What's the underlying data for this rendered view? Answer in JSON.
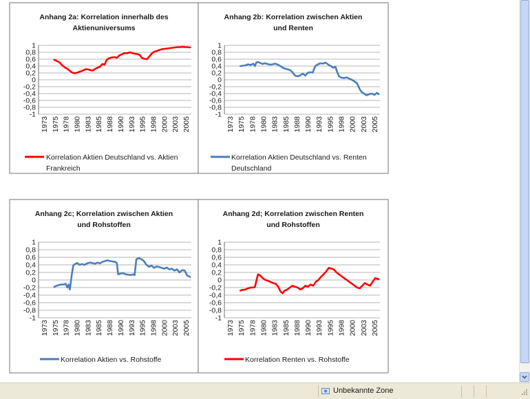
{
  "chart_data": [
    {
      "id": "2a",
      "type": "line",
      "title_lines": [
        "Anhang 2a: Korrelation innerhalb des",
        "Aktienuniversums"
      ],
      "legend_lines": [
        "Korrelation Aktien Deutschland vs. Aktien",
        "Frankreich"
      ],
      "color": "#ff0000",
      "ylim": [
        -1,
        1
      ],
      "yticks": [
        "1",
        "0,8",
        "0,6",
        "0,4",
        "0,2",
        "0",
        "-0,2",
        "-0,4",
        "-0,6",
        "-0,8",
        "-1"
      ],
      "xticks": [
        "1973",
        "1975",
        "1978",
        "1980",
        "1983",
        "1985",
        "1988",
        "1990",
        "1993",
        "1995",
        "1998",
        "2000",
        "2003",
        "2005"
      ],
      "xlim": [
        1972.2,
        2008.3
      ],
      "series": [
        {
          "name": "Korrelation Aktien Deutschland vs. Aktien Frankreich",
          "x": [
            1975.9,
            1976.5,
            1977.2,
            1977.8,
            1978.4,
            1979.0,
            1979.5,
            1980.0,
            1980.6,
            1981.2,
            1981.8,
            1982.3,
            1982.8,
            1983.4,
            1984.0,
            1984.5,
            1985.0,
            1985.5,
            1986.1,
            1986.7,
            1987.3,
            1987.8,
            1988.3,
            1988.9,
            1989.5,
            1990.1,
            1990.7,
            1991.3,
            1991.9,
            1992.5,
            1993.1,
            1993.7,
            1994.3,
            1994.9,
            1995.5,
            1996.1,
            1996.6,
            1997.2,
            1997.8,
            1998.4,
            1999.0,
            1999.6,
            2000.2,
            2000.8,
            2001.4,
            2002.0,
            2002.6,
            2003.2,
            2003.8,
            2004.4,
            2005.0,
            2005.6,
            2006.2,
            2006.8,
            2007.4,
            2008.0
          ],
          "y": [
            0.58,
            0.55,
            0.5,
            0.42,
            0.36,
            0.32,
            0.27,
            0.22,
            0.19,
            0.2,
            0.23,
            0.25,
            0.28,
            0.31,
            0.3,
            0.28,
            0.27,
            0.31,
            0.35,
            0.38,
            0.46,
            0.44,
            0.58,
            0.63,
            0.65,
            0.66,
            0.64,
            0.71,
            0.74,
            0.78,
            0.77,
            0.8,
            0.78,
            0.76,
            0.75,
            0.72,
            0.64,
            0.61,
            0.6,
            0.68,
            0.77,
            0.82,
            0.84,
            0.87,
            0.89,
            0.9,
            0.91,
            0.92,
            0.93,
            0.94,
            0.95,
            0.95,
            0.96,
            0.95,
            0.95,
            0.94
          ]
        }
      ]
    },
    {
      "id": "2b",
      "type": "line",
      "title_lines": [
        "Anhang 2b: Korrelation zwischen Aktien",
        "und Renten"
      ],
      "legend_lines": [
        "Korrelation Aktien Deutschland vs. Renten",
        "Deutschland"
      ],
      "color": "#4a7ebb",
      "ylim": [
        -1,
        1
      ],
      "yticks": [
        "1",
        "0,8",
        "0,6",
        "0,4",
        "0,2",
        "0",
        "-0,2",
        "-0,4",
        "-0,6",
        "-0,8",
        "-1"
      ],
      "xticks": [
        "1973",
        "1975",
        "1978",
        "1980",
        "1983",
        "1985",
        "1988",
        "1990",
        "1993",
        "1995",
        "1998",
        "2000",
        "2003",
        "2005"
      ],
      "xlim": [
        1972.2,
        2008.3
      ],
      "series": [
        {
          "name": "Korrelation Aktien Deutschland vs. Renten Deutschland",
          "x": [
            1975.9,
            1976.5,
            1977.1,
            1977.7,
            1978.3,
            1978.9,
            1979.3,
            1979.6,
            1980.0,
            1980.5,
            1981.0,
            1981.6,
            1982.2,
            1982.8,
            1983.4,
            1984.0,
            1984.6,
            1985.2,
            1985.8,
            1986.4,
            1987.0,
            1987.5,
            1988.0,
            1988.6,
            1989.2,
            1989.8,
            1990.4,
            1991.0,
            1991.5,
            1992.1,
            1992.7,
            1993.3,
            1993.9,
            1994.5,
            1995.1,
            1995.7,
            1996.3,
            1996.9,
            1997.5,
            1998.0,
            1998.3,
            1998.8,
            1999.4,
            2000.0,
            2000.6,
            2001.2,
            2001.8,
            2002.4,
            2003.0,
            2003.5,
            2004.0,
            2004.6,
            2005.2,
            2005.8,
            2006.4,
            2007.0,
            2007.6,
            2008.0
          ],
          "y": [
            0.4,
            0.41,
            0.42,
            0.45,
            0.43,
            0.47,
            0.4,
            0.5,
            0.52,
            0.49,
            0.46,
            0.48,
            0.46,
            0.44,
            0.45,
            0.47,
            0.44,
            0.4,
            0.35,
            0.32,
            0.3,
            0.28,
            0.22,
            0.12,
            0.1,
            0.13,
            0.18,
            0.12,
            0.2,
            0.22,
            0.21,
            0.4,
            0.45,
            0.48,
            0.47,
            0.5,
            0.44,
            0.4,
            0.35,
            0.38,
            0.25,
            0.1,
            0.06,
            0.05,
            0.07,
            0.03,
            0.0,
            -0.05,
            -0.1,
            -0.25,
            -0.35,
            -0.4,
            -0.45,
            -0.42,
            -0.4,
            -0.44,
            -0.38,
            -0.42
          ]
        }
      ]
    },
    {
      "id": "2c",
      "type": "line",
      "title_lines": [
        "Anhang 2c; Korrelation zwischen Aktien",
        "und Rohstoffen"
      ],
      "legend_lines": [
        "Korrelation Aktien vs. Rohstoffe"
      ],
      "color": "#4a7ebb",
      "ylim": [
        -1,
        1
      ],
      "yticks": [
        "1",
        "0,8",
        "0,6",
        "0,4",
        "0,2",
        "0",
        "-0,2",
        "-0,4",
        "-0,6",
        "-0,8",
        "-1"
      ],
      "xticks": [
        "1973",
        "1975",
        "1978",
        "1980",
        "1983",
        "1985",
        "1988",
        "1990",
        "1993",
        "1995",
        "1998",
        "2000",
        "2003",
        "2005"
      ],
      "xlim": [
        1972.2,
        2008.3
      ],
      "series": [
        {
          "name": "Korrelation Aktien vs. Rohstoffe",
          "x": [
            1975.9,
            1976.5,
            1977.1,
            1977.7,
            1978.2,
            1978.6,
            1979.0,
            1979.3,
            1979.6,
            1980.0,
            1980.4,
            1980.8,
            1981.3,
            1981.9,
            1982.5,
            1983.1,
            1983.7,
            1984.3,
            1984.9,
            1985.5,
            1986.1,
            1986.7,
            1987.3,
            1987.9,
            1988.5,
            1989.1,
            1989.7,
            1990.3,
            1990.7,
            1991.0,
            1991.6,
            1992.2,
            1992.8,
            1993.4,
            1994.0,
            1994.5,
            1994.9,
            1995.3,
            1995.9,
            1996.5,
            1997.1,
            1997.7,
            1998.3,
            1998.9,
            1999.5,
            2000.1,
            2000.7,
            2001.3,
            2001.9,
            2002.5,
            2003.1,
            2003.7,
            2004.3,
            2004.9,
            2005.5,
            2006.1,
            2006.7,
            2007.3,
            2008.0
          ],
          "y": [
            -0.18,
            -0.15,
            -0.13,
            -0.12,
            -0.12,
            -0.1,
            -0.2,
            -0.12,
            -0.25,
            0.1,
            0.38,
            0.42,
            0.45,
            0.4,
            0.42,
            0.4,
            0.44,
            0.46,
            0.45,
            0.43,
            0.46,
            0.44,
            0.48,
            0.5,
            0.52,
            0.5,
            0.49,
            0.48,
            0.45,
            0.15,
            0.17,
            0.18,
            0.15,
            0.14,
            0.13,
            0.15,
            0.13,
            0.55,
            0.58,
            0.55,
            0.5,
            0.4,
            0.35,
            0.38,
            0.32,
            0.36,
            0.34,
            0.32,
            0.3,
            0.33,
            0.28,
            0.3,
            0.25,
            0.28,
            0.2,
            0.26,
            0.25,
            0.12,
            0.08
          ]
        }
      ]
    },
    {
      "id": "2d",
      "type": "line",
      "title_lines": [
        "Anhang 2d; Korrelation zwischen Renten",
        "und Rohstoffen"
      ],
      "legend_lines": [
        "Korrelation Renten vs. Rohstoffe"
      ],
      "color": "#ff0000",
      "ylim": [
        -1,
        1
      ],
      "yticks": [
        "1",
        "0,8",
        "0,6",
        "0,4",
        "0,2",
        "0",
        "-0,2",
        "-0,4",
        "-0,6",
        "-0,8",
        "-1"
      ],
      "xticks": [
        "1973",
        "1975",
        "1978",
        "1980",
        "1983",
        "1985",
        "1988",
        "1990",
        "1993",
        "1995",
        "1998",
        "2000",
        "2003",
        "2005"
      ],
      "xlim": [
        1972.2,
        2008.3
      ],
      "series": [
        {
          "name": "Korrelation Renten vs. Rohstoffe",
          "x": [
            1975.9,
            1976.5,
            1977.1,
            1977.7,
            1978.3,
            1978.9,
            1979.3,
            1979.7,
            1980.0,
            1980.5,
            1981.1,
            1981.7,
            1982.3,
            1982.9,
            1983.5,
            1984.1,
            1984.7,
            1985.2,
            1985.7,
            1986.2,
            1986.8,
            1987.4,
            1988.0,
            1988.6,
            1989.2,
            1989.8,
            1990.4,
            1991.0,
            1991.6,
            1992.2,
            1992.8,
            1993.4,
            1994.0,
            1994.6,
            1995.2,
            1995.8,
            1996.4,
            1997.0,
            1997.6,
            1998.2,
            1998.8,
            1999.4,
            2000.0,
            2000.6,
            2001.2,
            2001.8,
            2002.4,
            2003.0,
            2003.6,
            2004.2,
            2004.8,
            2005.4,
            2006.0,
            2006.6,
            2007.2,
            2008.0
          ],
          "y": [
            -0.28,
            -0.26,
            -0.25,
            -0.22,
            -0.2,
            -0.2,
            -0.18,
            0.02,
            0.15,
            0.12,
            0.05,
            0.0,
            -0.02,
            -0.05,
            -0.08,
            -0.1,
            -0.18,
            -0.3,
            -0.35,
            -0.28,
            -0.25,
            -0.2,
            -0.15,
            -0.18,
            -0.2,
            -0.25,
            -0.22,
            -0.15,
            -0.18,
            -0.12,
            -0.15,
            -0.05,
            0.0,
            0.08,
            0.15,
            0.22,
            0.32,
            0.3,
            0.28,
            0.2,
            0.15,
            0.1,
            0.05,
            0.0,
            -0.05,
            -0.1,
            -0.15,
            -0.2,
            -0.22,
            -0.15,
            -0.08,
            -0.12,
            -0.15,
            -0.05,
            0.05,
            0.02
          ]
        }
      ]
    }
  ],
  "statusbar": {
    "zone_label": "Unbekannte Zone"
  },
  "scrollbar": {
    "down_arrow_icon": "chevron-down-icon"
  }
}
